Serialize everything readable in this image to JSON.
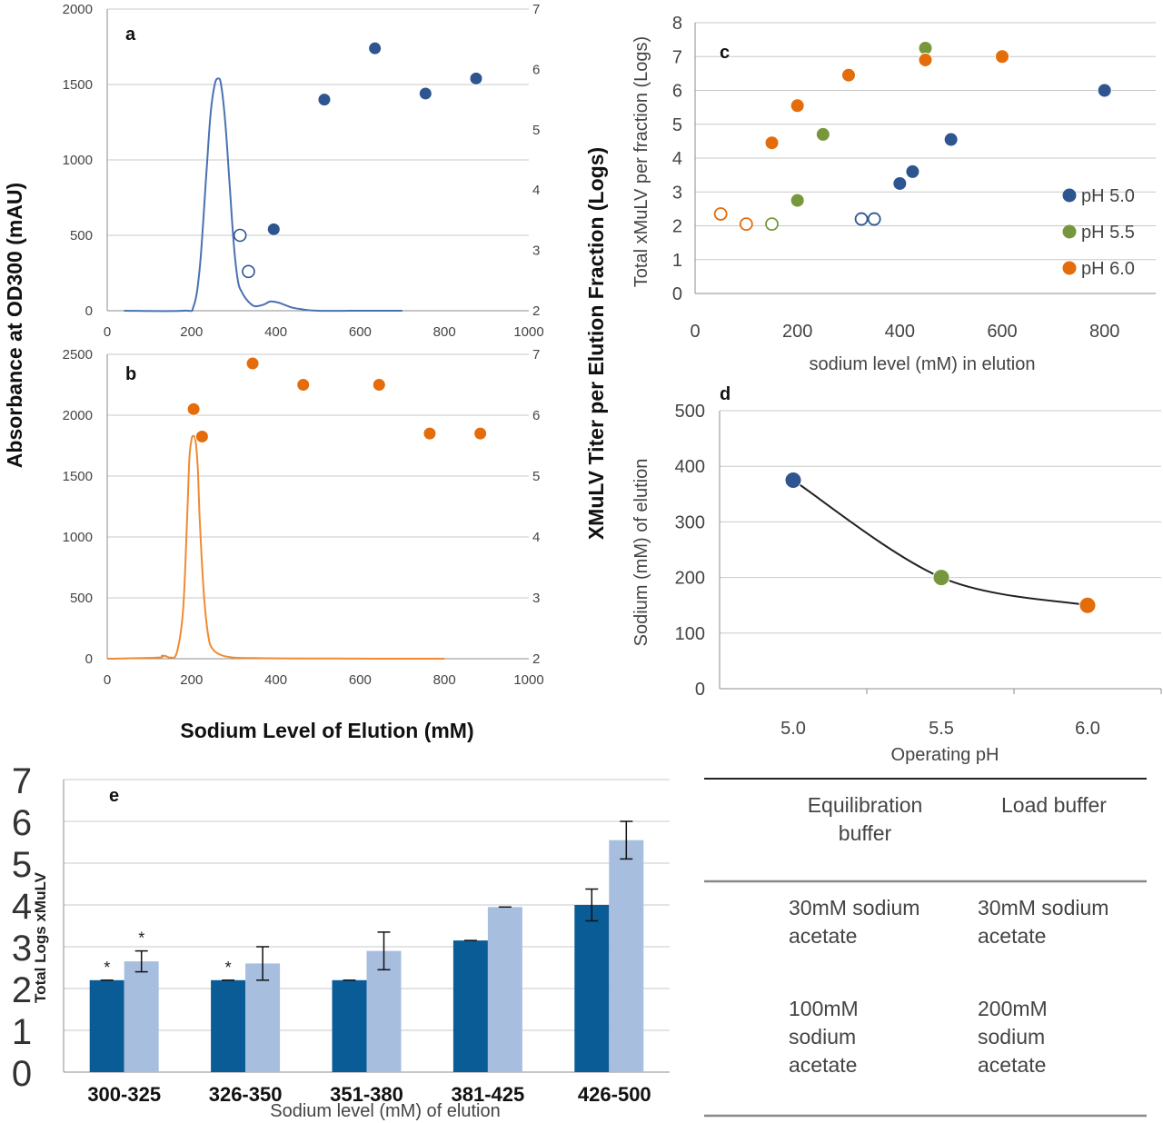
{
  "colors": {
    "blue_point": "#2e5590",
    "green_point": "#77973d",
    "orange_point": "#e46c0a",
    "trace_blue": "#4a72b0",
    "trace_orange": "#f08a33",
    "bar_dark": "#0a5c96",
    "bar_light": "#a7bedf"
  },
  "shared_labels": {
    "y_left": "Absorbance at OD300 (mAU)",
    "y_right": "XMuLV Titer per Elution Fraction (Logs)",
    "x": "Sodium Level of Elution (mM)"
  },
  "chart_data": [
    {
      "panel": "a",
      "type": "line",
      "xlim": [
        0,
        1000
      ],
      "ylim": [
        0,
        2000
      ],
      "y2lim": [
        2,
        7
      ],
      "xticks": [
        "0",
        "200",
        "400",
        "600",
        "800",
        "1000"
      ],
      "yticks": [
        "0",
        "500",
        "1000",
        "1500",
        "2000"
      ],
      "y2ticks": [
        "2",
        "3",
        "4",
        "5",
        "6",
        "7"
      ],
      "grid": true,
      "trace": {
        "color": "#4a72b0",
        "x": [
          40,
          180,
          205,
          220,
          235,
          245,
          255,
          263,
          270,
          280,
          290,
          300,
          310,
          320,
          335,
          350,
          370,
          385,
          395,
          405,
          420,
          440,
          460,
          500,
          600,
          700
        ],
        "y": [
          0,
          0,
          30,
          300,
          900,
          1300,
          1500,
          1540,
          1500,
          1250,
          850,
          450,
          200,
          120,
          60,
          30,
          40,
          60,
          60,
          55,
          40,
          20,
          10,
          0,
          0,
          0
        ]
      },
      "points_filled": {
        "x": [
          395,
          515,
          635,
          755,
          875
        ],
        "y": [
          3.35,
          5.5,
          6.35,
          5.6,
          5.85
        ]
      },
      "points_open": {
        "x": [
          315,
          335
        ],
        "y": [
          3.25,
          2.65
        ]
      }
    },
    {
      "panel": "b",
      "type": "line",
      "xlim": [
        0,
        1000
      ],
      "ylim": [
        0,
        2500
      ],
      "y2lim": [
        2,
        7
      ],
      "xticks": [
        "0",
        "200",
        "400",
        "600",
        "800",
        "1000"
      ],
      "yticks": [
        "0",
        "500",
        "1000",
        "1500",
        "2000",
        "2500"
      ],
      "y2ticks": [
        "2",
        "3",
        "4",
        "5",
        "6",
        "7"
      ],
      "grid": true,
      "trace": {
        "color": "#f08a33",
        "x": [
          0,
          120,
          130,
          140,
          150,
          165,
          180,
          190,
          195,
          200,
          205,
          210,
          215,
          220,
          230,
          240,
          250,
          270,
          300,
          350,
          400,
          500,
          600,
          700,
          800
        ],
        "y": [
          0,
          10,
          25,
          20,
          10,
          50,
          400,
          1200,
          1650,
          1800,
          1830,
          1780,
          1550,
          1100,
          500,
          180,
          80,
          30,
          10,
          5,
          3,
          2,
          1,
          0,
          0
        ]
      },
      "points": {
        "x": [
          205,
          225,
          345,
          465,
          645,
          765,
          885
        ],
        "y": [
          6.1,
          5.65,
          6.85,
          6.5,
          6.5,
          5.7,
          5.7
        ]
      }
    },
    {
      "panel": "c",
      "type": "scatter",
      "xlabel": "sodium level (mM) in elution",
      "ylabel": "Total xMuLV per fraction (Logs)",
      "xlim": [
        0,
        900
      ],
      "ylim": [
        0,
        8
      ],
      "xticks": [
        "0",
        "200",
        "400",
        "600",
        "800"
      ],
      "yticks": [
        "0",
        "1",
        "2",
        "3",
        "4",
        "5",
        "6",
        "7",
        "8"
      ],
      "grid": true,
      "legend_position": "right",
      "series": [
        {
          "name": "pH 5.0",
          "color": "#2e5590",
          "filled": {
            "x": [
              400,
              425,
              500,
              800
            ],
            "y": [
              3.25,
              3.6,
              4.55,
              6.0
            ]
          },
          "open": {
            "x": [
              325,
              350
            ],
            "y": [
              2.2,
              2.2
            ]
          }
        },
        {
          "name": "pH 5.5",
          "color": "#77973d",
          "filled": {
            "x": [
              200,
              250,
              450
            ],
            "y": [
              2.75,
              4.7,
              7.25
            ]
          },
          "open": {
            "x": [
              150
            ],
            "y": [
              2.05
            ]
          }
        },
        {
          "name": "pH 6.0",
          "color": "#e46c0a",
          "filled": {
            "x": [
              150,
              200,
              300,
              450,
              600
            ],
            "y": [
              4.45,
              5.55,
              6.45,
              6.9,
              7.0
            ]
          },
          "open": {
            "x": [
              50,
              100
            ],
            "y": [
              2.35,
              2.05
            ]
          }
        }
      ]
    },
    {
      "panel": "d",
      "type": "line",
      "xlabel": "Operating pH",
      "ylabel": "Sodium (mM) of elution",
      "categories": [
        "5.0",
        "5.5",
        "6.0"
      ],
      "values": [
        375,
        200,
        150
      ],
      "point_colors": [
        "#2e5590",
        "#77973d",
        "#e46c0a"
      ],
      "ylim": [
        0,
        500
      ],
      "yticks": [
        "0",
        "100",
        "200",
        "300",
        "400",
        "500"
      ],
      "grid": true
    },
    {
      "panel": "e",
      "type": "bar",
      "xlabel": "Sodium  level (mM) of elution",
      "ylabel": "Total Logs xMuLV",
      "categories": [
        "300-325",
        "326-350",
        "351-380",
        "381-425",
        "426-500"
      ],
      "ylim": [
        0,
        7
      ],
      "yticks": [
        "0",
        "1",
        "2",
        "3",
        "4",
        "5",
        "6",
        "7"
      ],
      "grid": true,
      "series": [
        {
          "color": "#0a5c96",
          "values": [
            2.2,
            2.2,
            2.2,
            3.15,
            4.0
          ],
          "errors": [
            0.0,
            0.0,
            0.0,
            0.0,
            0.38
          ],
          "marks": [
            "*",
            "*",
            "",
            "",
            ""
          ]
        },
        {
          "color": "#a7bedf",
          "values": [
            2.65,
            2.6,
            2.9,
            3.95,
            5.55
          ],
          "errors": [
            0.25,
            0.4,
            0.45,
            0.0,
            0.45
          ],
          "marks": [
            "*",
            "",
            "",
            "",
            ""
          ]
        }
      ]
    }
  ],
  "table": {
    "header": [
      "Equilibration\nbuffer",
      "Load buffer"
    ],
    "rows": [
      [
        "30mM  sodium\nacetate",
        "30mM  sodium\nacetate"
      ],
      [
        "100mM\nsodium\nacetate",
        "200mM\nsodium\nacetate"
      ]
    ]
  }
}
